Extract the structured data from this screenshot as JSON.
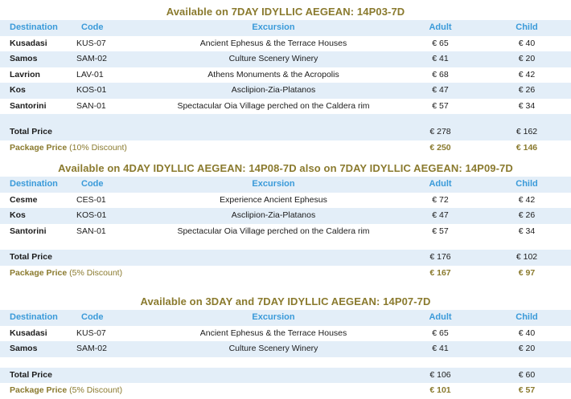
{
  "headers": {
    "destination": "Destination",
    "code": "Code",
    "excursion": "Excursion",
    "adult": "Adult",
    "child": "Child"
  },
  "sections": [
    {
      "title": "Available on 7DAY IDYLLIC AEGEAN: 14P03-7D",
      "rows": [
        {
          "destination": "Kusadasi",
          "code": "KUS-07",
          "excursion": "Ancient Ephesus & the Terrace Houses",
          "adult": "€ 65",
          "child": "€ 40"
        },
        {
          "destination": "Samos",
          "code": "SAM-02",
          "excursion": "Culture Scenery Winery",
          "adult": "€ 41",
          "child": "€ 20"
        },
        {
          "destination": "Lavrion",
          "code": "LAV-01",
          "excursion": "Athens Monuments & the Acropolis",
          "adult": "€ 68",
          "child": "€ 42"
        },
        {
          "destination": "Kos",
          "code": "KOS-01",
          "excursion": "Asclipion-Zia-Platanos",
          "adult": "€ 47",
          "child": "€ 26"
        },
        {
          "destination": "Santorini",
          "code": "SAN-01",
          "excursion": "Spectacular Oia Village perched on the Caldera rim",
          "adult": "€ 57",
          "child": "€ 34"
        }
      ],
      "total": {
        "label": "Total  Price",
        "adult": "€ 278",
        "child": "€ 162"
      },
      "package": {
        "label": "Package Price",
        "note": "(10% Discount)",
        "adult": "€ 250",
        "child": "€ 146"
      }
    },
    {
      "title": "Available on 4DAY IDYLLIC AEGEAN: 14P08-7D also on 7DAY IDYLLIC AEGEAN: 14P09-7D",
      "rows": [
        {
          "destination": "Cesme",
          "code": "CES-01",
          "excursion": "Experience Ancient Ephesus",
          "adult": "€ 72",
          "child": "€ 42"
        },
        {
          "destination": "Kos",
          "code": "KOS-01",
          "excursion": "Asclipion-Zia-Platanos",
          "adult": "€ 47",
          "child": "€ 26"
        },
        {
          "destination": "Santorini",
          "code": "SAN-01",
          "excursion": "Spectacular Oia Village perched on the Caldera rim",
          "adult": "€ 57",
          "child": "€ 34"
        }
      ],
      "total": {
        "label": "Total  Price",
        "adult": "€ 176",
        "child": "€ 102"
      },
      "package": {
        "label": "Package Price",
        "note": "(5% Discount)",
        "adult": "€ 167",
        "child": "€ 97"
      }
    },
    {
      "title": "Available on 3DAY and 7DAY IDYLLIC AEGEAN:  14P07-7D",
      "rows": [
        {
          "destination": "Kusadasi",
          "code": "KUS-07",
          "excursion": "Ancient Ephesus & the Terrace Houses",
          "adult": "€ 65",
          "child": "€ 40"
        },
        {
          "destination": "Samos",
          "code": "SAM-02",
          "excursion": "Culture Scenery Winery",
          "adult": "€ 41",
          "child": "€ 20"
        }
      ],
      "total": {
        "label": "Total  Price",
        "adult": "€ 106",
        "child": "€ 60"
      },
      "package": {
        "label": "Package Price",
        "note": "(5% Discount)",
        "adult": "€ 101",
        "child": "€ 57"
      }
    }
  ]
}
